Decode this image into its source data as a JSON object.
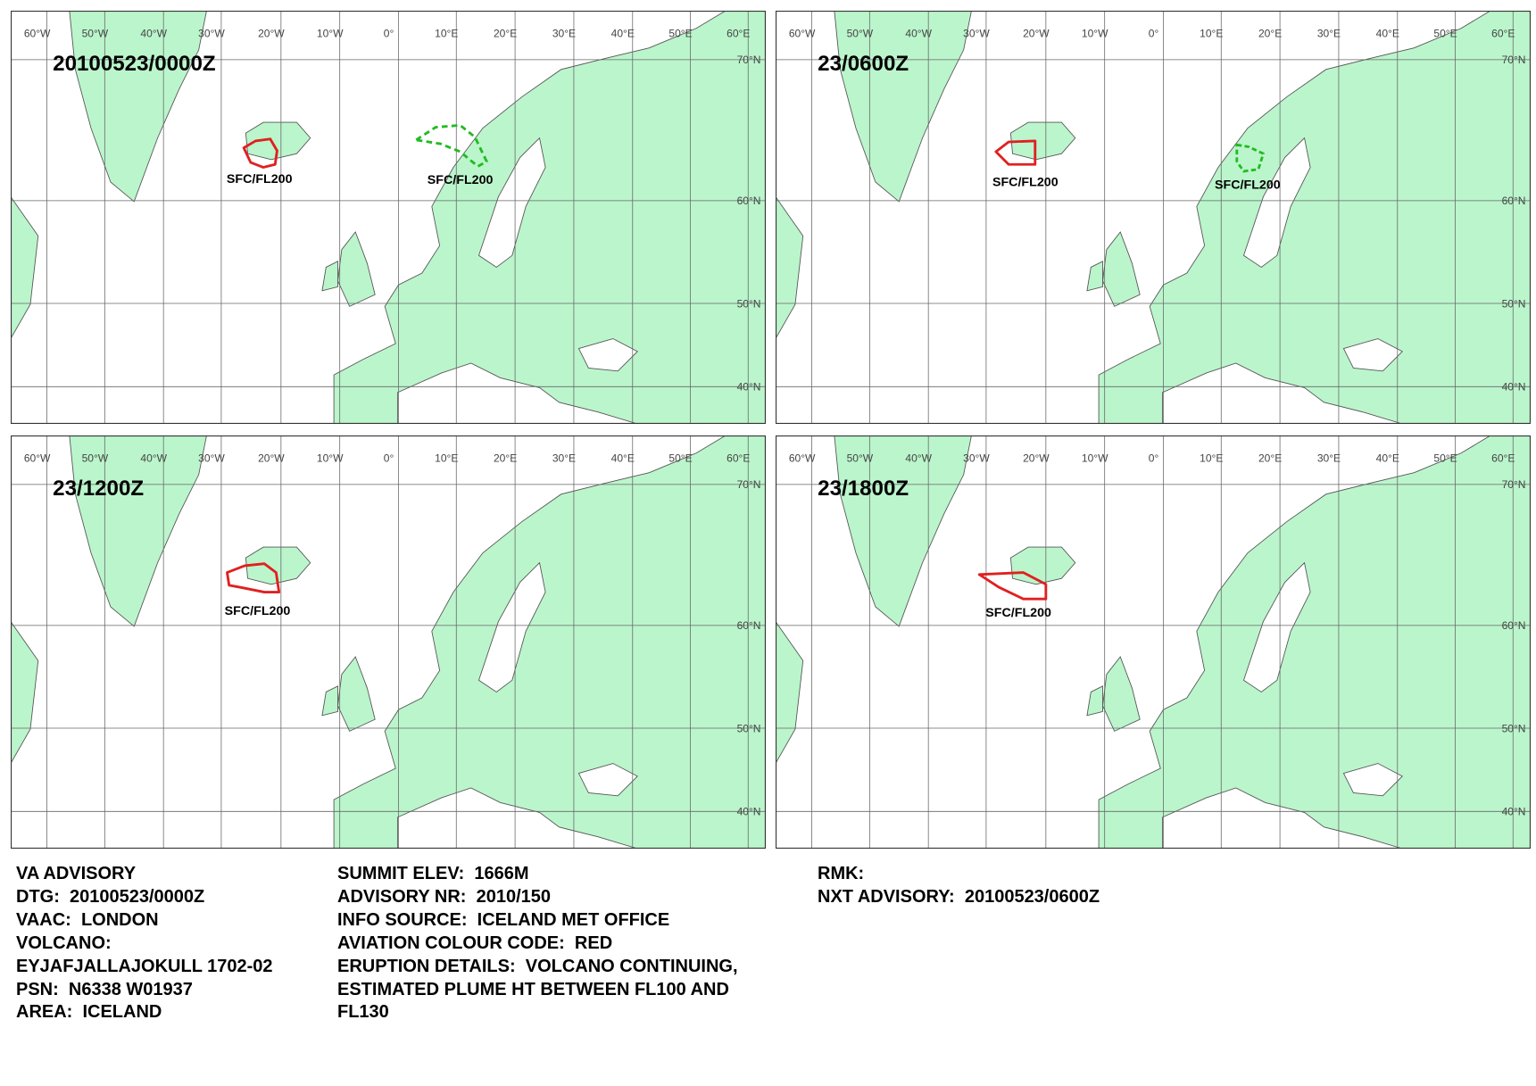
{
  "panels": [
    {
      "time": "20100523/0000Z",
      "plumes": [
        {
          "label": "SFC/FL200"
        },
        {
          "label": "SFC/FL200"
        }
      ]
    },
    {
      "time": "23/0600Z",
      "plumes": [
        {
          "label": "SFC/FL200"
        },
        {
          "label": "SFC/FL200"
        }
      ]
    },
    {
      "time": "23/1200Z",
      "plumes": [
        {
          "label": "SFC/FL200"
        }
      ]
    },
    {
      "time": "23/1800Z",
      "plumes": [
        {
          "label": "SFC/FL200"
        }
      ]
    }
  ],
  "grid": {
    "longitudes": [
      "60°W",
      "50°W",
      "40°W",
      "30°W",
      "20°W",
      "10°W",
      "0°",
      "10°E",
      "20°E",
      "30°E",
      "40°E",
      "50°E",
      "60°E"
    ],
    "latitudes": [
      "70°N",
      "60°N",
      "50°N",
      "40°N"
    ]
  },
  "advisory": {
    "columns": [
      [
        "VA ADVISORY",
        "DTG:  20100523/0000Z",
        "VAAC:  LONDON",
        "VOLCANO:",
        "EYJAFJALLAJOKULL 1702-02",
        "PSN:  N6338 W01937",
        "AREA:  ICELAND"
      ],
      [
        "SUMMIT ELEV:  1666M",
        "ADVISORY NR:  2010/150",
        "INFO SOURCE:  ICELAND MET OFFICE",
        "AVIATION COLOUR CODE:  RED",
        "ERUPTION DETAILS:  VOLCANO CONTINUING,",
        "ESTIMATED PLUME HT BETWEEN FL100 AND",
        "FL130"
      ],
      [
        "RMK:",
        "NXT ADVISORY:  20100523/0600Z"
      ]
    ]
  }
}
